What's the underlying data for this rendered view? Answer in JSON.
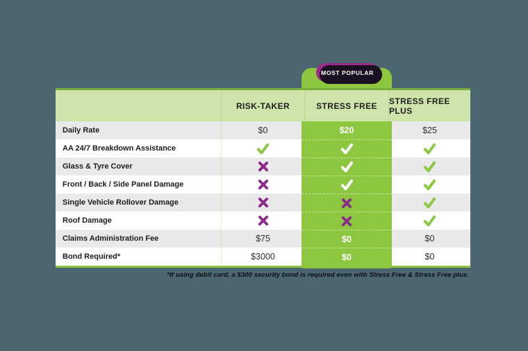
{
  "colors": {
    "background": "#4b6670",
    "accent_green": "#8dc63f",
    "header_green": "#cfe4ab",
    "badge_purple": "#9a2b8b",
    "cross_purple": "#8a2b8a",
    "check_green": "#8dc63f",
    "row_alt_gray": "#e9e9e9",
    "highlight_text": "#ffffff"
  },
  "badge": {
    "label": "MOST POPULAR"
  },
  "table": {
    "columns": [
      "RISK-TAKER",
      "STRESS FREE",
      "STRESS FREE PLUS"
    ],
    "highlight_column": "STRESS FREE",
    "rows": [
      {
        "label": "Daily Rate",
        "values": [
          "$0",
          "$20",
          "$25"
        ]
      },
      {
        "label": "AA 24/7 Breakdown Assistance",
        "values": [
          "check",
          "check",
          "check"
        ]
      },
      {
        "label": "Glass & Tyre Cover",
        "values": [
          "cross",
          "check",
          "check"
        ]
      },
      {
        "label": "Front / Back / Side Panel Damage",
        "values": [
          "cross",
          "check",
          "check"
        ]
      },
      {
        "label": "Single Vehicle Rollover Damage",
        "values": [
          "cross",
          "cross",
          "check"
        ]
      },
      {
        "label": "Roof Damage",
        "values": [
          "cross",
          "cross",
          "check"
        ]
      },
      {
        "label": "Claims Administration Fee",
        "values": [
          "$75",
          "$0",
          "$0"
        ]
      },
      {
        "label": "Bond Required*",
        "values": [
          "$3000",
          "$0",
          "$0"
        ]
      }
    ]
  },
  "footnote": "*If using debit card, a $300 security bond is required even with Stress Free & Stress Free plus."
}
